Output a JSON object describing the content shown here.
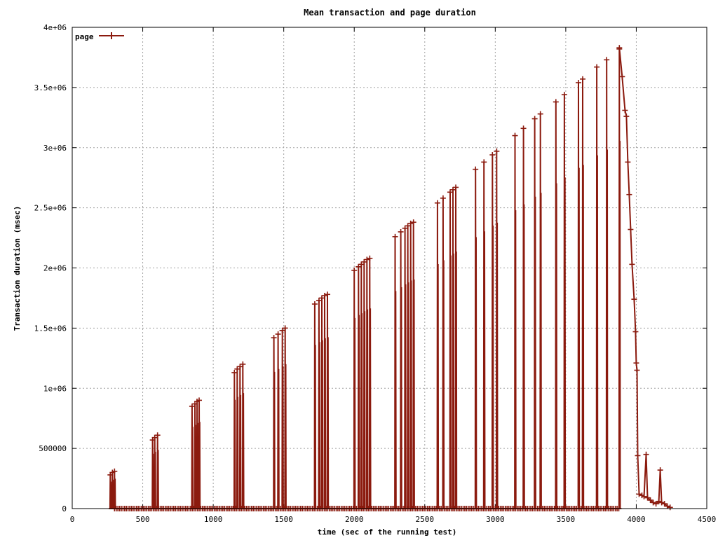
{
  "chart_data": {
    "type": "line",
    "title": "Mean transaction and page duration",
    "xlabel": "time (sec of the running test)",
    "ylabel": "Transaction duration (msec)",
    "xlim": [
      0,
      4500
    ],
    "ylim": [
      0,
      4000000
    ],
    "x_ticks": [
      0,
      500,
      1000,
      1500,
      2000,
      2500,
      3000,
      3500,
      4000,
      4500
    ],
    "x_tick_labels": [
      "0",
      "500",
      "1000",
      "1500",
      "2000",
      "2500",
      "3000",
      "3500",
      "4000",
      "4500"
    ],
    "y_ticks": [
      0,
      500000,
      1000000,
      1500000,
      2000000,
      2500000,
      3000000,
      3500000,
      4000000
    ],
    "y_tick_labels": [
      "0",
      "500000",
      "1e+06",
      "1.5e+06",
      "2e+06",
      "2.5e+06",
      "3e+06",
      "3.5e+06",
      "4e+06"
    ],
    "grid": true,
    "legend_position": "top-left",
    "series_color": "#8b1a0e",
    "bursts": [
      {
        "peaks": [
          [
            270,
            280000
          ],
          [
            285,
            300000
          ],
          [
            300,
            310000
          ]
        ],
        "base": 0
      },
      {
        "peaks": [
          [
            570,
            570000
          ],
          [
            585,
            590000
          ],
          [
            605,
            610000
          ]
        ],
        "base": 0
      },
      {
        "peaks": [
          [
            850,
            850000
          ],
          [
            870,
            870000
          ],
          [
            885,
            890000
          ],
          [
            900,
            900000
          ]
        ],
        "base": 0
      },
      {
        "peaks": [
          [
            1150,
            1130000
          ],
          [
            1170,
            1160000
          ],
          [
            1190,
            1180000
          ],
          [
            1210,
            1200000
          ]
        ],
        "base": 0
      },
      {
        "peaks": [
          [
            1430,
            1420000
          ],
          [
            1460,
            1450000
          ],
          [
            1490,
            1480000
          ],
          [
            1510,
            1500000
          ]
        ],
        "base": 0
      },
      {
        "peaks": [
          [
            1720,
            1700000
          ],
          [
            1750,
            1730000
          ],
          [
            1770,
            1750000
          ],
          [
            1790,
            1770000
          ],
          [
            1810,
            1780000
          ]
        ],
        "base": 0
      },
      {
        "peaks": [
          [
            2000,
            1980000
          ],
          [
            2030,
            2010000
          ],
          [
            2050,
            2030000
          ],
          [
            2070,
            2050000
          ],
          [
            2090,
            2070000
          ],
          [
            2110,
            2080000
          ]
        ],
        "base": 0
      },
      {
        "peaks": [
          [
            2290,
            2260000
          ],
          [
            2330,
            2300000
          ],
          [
            2360,
            2330000
          ],
          [
            2380,
            2350000
          ],
          [
            2400,
            2370000
          ],
          [
            2420,
            2380000
          ]
        ],
        "base": 0
      },
      {
        "peaks": [
          [
            2590,
            2540000
          ],
          [
            2630,
            2580000
          ],
          [
            2680,
            2630000
          ],
          [
            2700,
            2650000
          ],
          [
            2720,
            2670000
          ]
        ],
        "base": 0
      },
      {
        "peaks": [
          [
            2860,
            2820000
          ],
          [
            2920,
            2880000
          ],
          [
            2980,
            2940000
          ],
          [
            3010,
            2970000
          ]
        ],
        "base": 0
      },
      {
        "peaks": [
          [
            3140,
            3100000
          ],
          [
            3200,
            3160000
          ],
          [
            3280,
            3240000
          ],
          [
            3320,
            3280000
          ]
        ],
        "base": 0
      },
      {
        "peaks": [
          [
            3430,
            3380000
          ],
          [
            3490,
            3440000
          ],
          [
            3590,
            3540000
          ],
          [
            3620,
            3570000
          ]
        ],
        "base": 0
      },
      {
        "peaks": [
          [
            3720,
            3670000
          ],
          [
            3790,
            3730000
          ],
          [
            3880,
            3820000
          ]
        ],
        "base": 0
      }
    ],
    "tail": [
      [
        3880,
        3830000
      ],
      [
        3900,
        3590000
      ],
      [
        3920,
        3310000
      ],
      [
        3930,
        3260000
      ],
      [
        3940,
        2880000
      ],
      [
        3950,
        2610000
      ],
      [
        3960,
        2320000
      ],
      [
        3970,
        2030000
      ],
      [
        3985,
        1740000
      ],
      [
        3995,
        1470000
      ],
      [
        4000,
        1210000
      ],
      [
        4005,
        1150000
      ],
      [
        4010,
        440000
      ],
      [
        4020,
        120000
      ],
      [
        4040,
        110000
      ],
      [
        4055,
        100000
      ],
      [
        4070,
        450000
      ],
      [
        4080,
        90000
      ],
      [
        4100,
        70000
      ],
      [
        4120,
        50000
      ],
      [
        4140,
        40000
      ],
      [
        4160,
        60000
      ],
      [
        4170,
        320000
      ],
      [
        4180,
        50000
      ],
      [
        4200,
        40000
      ],
      [
        4220,
        20000
      ],
      [
        4240,
        10000
      ]
    ],
    "series": [
      {
        "name": "page",
        "color": "#8b1a0e",
        "marker": "plus"
      }
    ]
  }
}
